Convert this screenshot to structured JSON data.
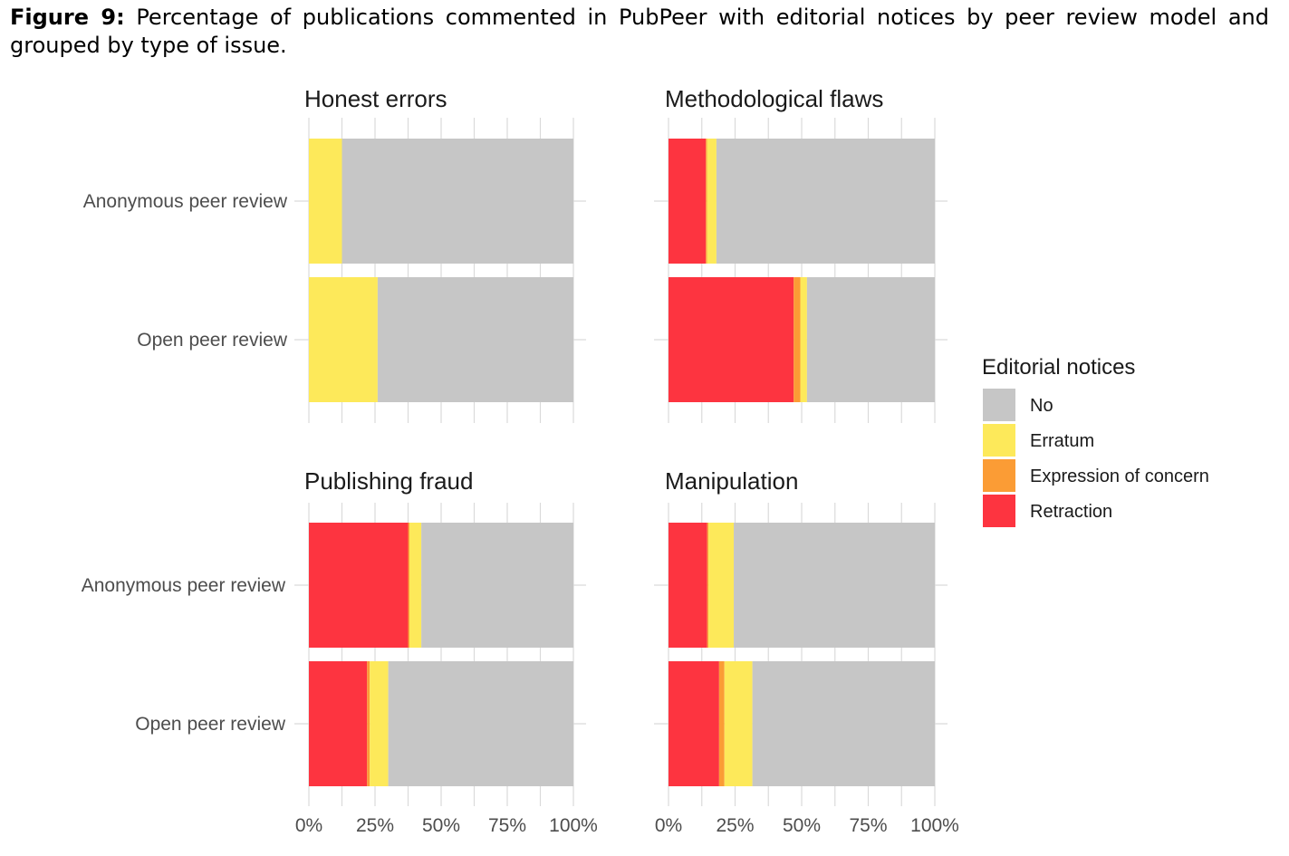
{
  "caption": {
    "label": "Figure 9:",
    "text": " Percentage of publications commented in PubPeer with editorial notices by peer review model and grouped by type of issue."
  },
  "chart_data": {
    "type": "bar",
    "orientation": "horizontal",
    "stacked": true,
    "normalized": true,
    "facets": [
      "Honest errors",
      "Methodological flaws",
      "Publishing fraud",
      "Manipulation"
    ],
    "categories": [
      "Anonymous peer review",
      "Open peer review"
    ],
    "x_ticks": [
      "0%",
      "25%",
      "50%",
      "75%",
      "100%"
    ],
    "xlim": [
      0,
      100
    ],
    "grid": true,
    "legend": {
      "title": "Editorial notices",
      "position": "right",
      "entries": [
        {
          "name": "No",
          "color": "#c6c6c6"
        },
        {
          "name": "Erratum",
          "color": "#fde95a"
        },
        {
          "name": "Expression of concern",
          "color": "#fb9c35"
        },
        {
          "name": "Retraction",
          "color": "#fd3440"
        }
      ]
    },
    "panels": [
      {
        "facet": "Honest errors",
        "series": [
          {
            "name": "Retraction",
            "values": [
              0,
              0
            ]
          },
          {
            "name": "Expression of concern",
            "values": [
              0,
              0
            ]
          },
          {
            "name": "Erratum",
            "values": [
              12.5,
              26
            ]
          },
          {
            "name": "No",
            "values": [
              87.5,
              74
            ]
          }
        ]
      },
      {
        "facet": "Methodological flaws",
        "series": [
          {
            "name": "Retraction",
            "values": [
              14,
              47
            ]
          },
          {
            "name": "Expression of concern",
            "values": [
              0.5,
              2.5
            ]
          },
          {
            "name": "Erratum",
            "values": [
              3.5,
              2.5
            ]
          },
          {
            "name": "No",
            "values": [
              82,
              48
            ]
          }
        ]
      },
      {
        "facet": "Publishing fraud",
        "series": [
          {
            "name": "Retraction",
            "values": [
              37.5,
              22
            ]
          },
          {
            "name": "Expression of concern",
            "values": [
              0.5,
              1
            ]
          },
          {
            "name": "Erratum",
            "values": [
              4.5,
              7
            ]
          },
          {
            "name": "No",
            "values": [
              57.5,
              70
            ]
          }
        ]
      },
      {
        "facet": "Manipulation",
        "series": [
          {
            "name": "Retraction",
            "values": [
              14.5,
              19
            ]
          },
          {
            "name": "Expression of concern",
            "values": [
              0.5,
              2
            ]
          },
          {
            "name": "Erratum",
            "values": [
              9.5,
              10.5
            ]
          },
          {
            "name": "No",
            "values": [
              75.5,
              68.5
            ]
          }
        ]
      }
    ]
  }
}
